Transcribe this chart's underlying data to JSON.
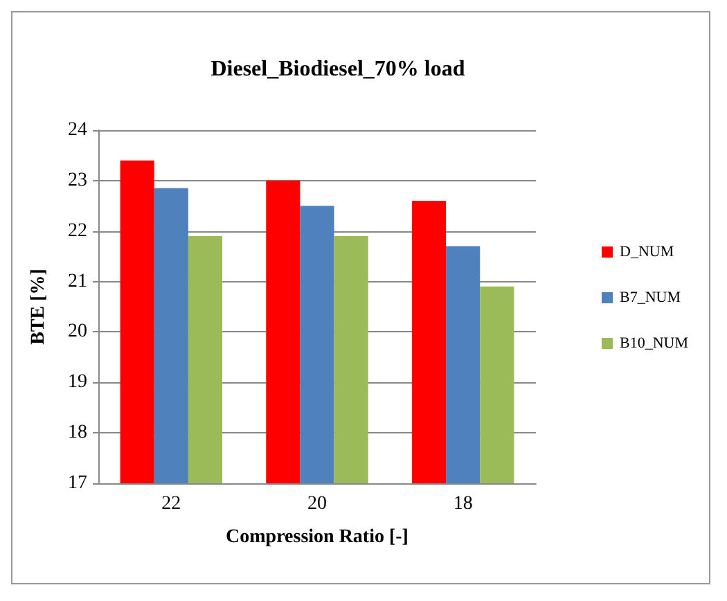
{
  "chart_data": {
    "type": "bar",
    "title": "Diesel_Biodiesel_70% load",
    "xlabel": "Compression Ratio [-]",
    "ylabel": "BTE [%]",
    "categories": [
      "22",
      "20",
      "18"
    ],
    "series": [
      {
        "name": "D_NUM",
        "color": "#ff0000",
        "values": [
          23.4,
          23.0,
          22.6
        ]
      },
      {
        "name": "B7_NUM",
        "color": "#4f81bd",
        "values": [
          22.85,
          22.5,
          21.7
        ]
      },
      {
        "name": "B10_NUM",
        "color": "#9bbb59",
        "values": [
          21.9,
          21.9,
          20.9
        ]
      }
    ],
    "ylim": [
      17,
      24
    ],
    "yticks": [
      17,
      18,
      19,
      20,
      21,
      22,
      23,
      24
    ],
    "grid": "y",
    "legend": "right"
  }
}
